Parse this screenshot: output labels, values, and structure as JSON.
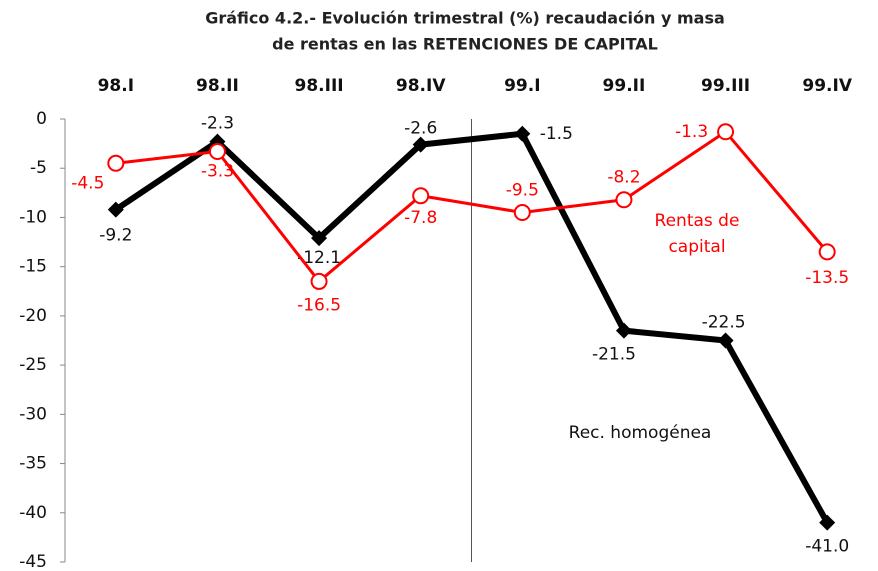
{
  "chart_data": {
    "type": "line",
    "title": [
      "Gráfico 4.2.- Evolución trimestral (%) recaudación y masa",
      "de rentas en las RETENCIONES DE CAPITAL"
    ],
    "categories": [
      "98.I",
      "98.II",
      "98.III",
      "98.IV",
      "99.I",
      "99.II",
      "99.III",
      "99.IV"
    ],
    "series": [
      {
        "name": "Rec. homogénea",
        "color": "#000000",
        "values": [
          -9.2,
          -2.3,
          -12.1,
          -2.6,
          -1.5,
          -21.5,
          -22.5,
          -41.0
        ],
        "value_labels": [
          "-9.2",
          "-2.3",
          "-12.1",
          "-2.6",
          "-1.5",
          "-21.5",
          "-22.5",
          "-41.0"
        ]
      },
      {
        "name": [
          "Rentas de",
          "capital"
        ],
        "color": "#ff0000",
        "values": [
          -4.5,
          -3.3,
          -16.5,
          -7.8,
          -9.5,
          -8.2,
          -1.3,
          -13.5
        ],
        "value_labels": [
          "-4.5",
          "-3.3",
          "-16.5",
          "-7.8",
          "-9.5",
          "-8.2",
          "-1.3",
          "-13.5"
        ]
      }
    ],
    "ylim": [
      -45,
      0
    ],
    "yticks": [
      0,
      -5,
      -10,
      -15,
      -20,
      -25,
      -30,
      -35,
      -40,
      -45
    ]
  }
}
